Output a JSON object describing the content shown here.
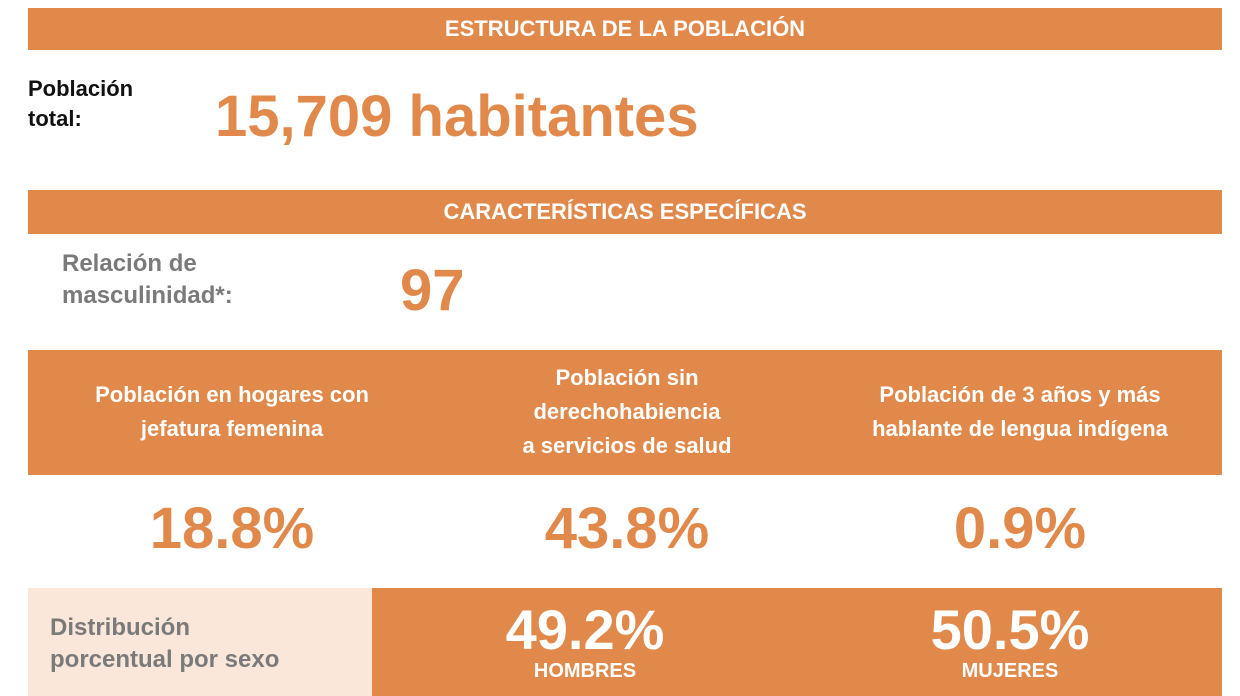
{
  "header": {
    "title": "ESTRUCTURA DE LA POBLACIÓN"
  },
  "total_population": {
    "label": [
      "Población",
      "total:"
    ],
    "value": "15,709 habitantes"
  },
  "section": {
    "title": "CARACTERÍSTICAS ESPECÍFICAS"
  },
  "masculinity": {
    "label": [
      "Relación de",
      "masculinidad*:"
    ],
    "value": "97"
  },
  "indicators": [
    {
      "label": [
        "Población en hogares con",
        "jefatura femenina"
      ],
      "value": "18.8%"
    },
    {
      "label": [
        "Población sin",
        "derechohabiencia",
        "a servicios de salud"
      ],
      "value": "43.8%"
    },
    {
      "label": [
        "Población de 3 años y más",
        "hablante de lengua indígena"
      ],
      "value": "0.9%"
    }
  ],
  "sex_distribution": {
    "label": [
      "Distribución",
      "porcentual por sexo"
    ],
    "groups": [
      {
        "value": "49.2%",
        "label": "HOMBRES"
      },
      {
        "value": "50.5%",
        "label": "MUJERES"
      }
    ]
  }
}
